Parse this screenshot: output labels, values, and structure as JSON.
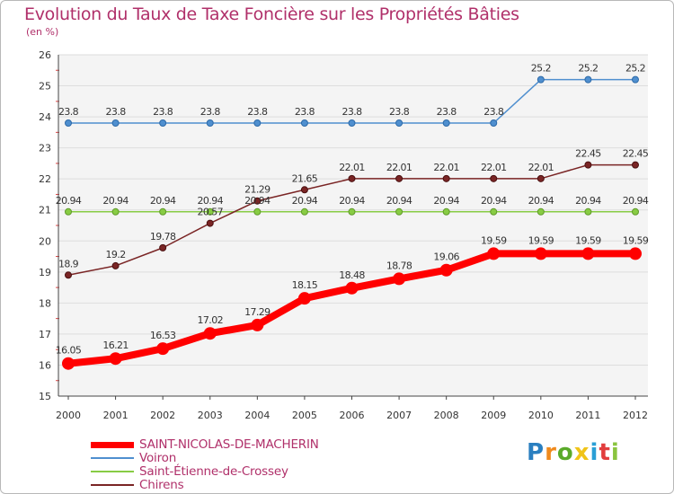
{
  "chart_data": {
    "type": "line",
    "title": "Evolution du Taux de Taxe Foncière sur les Propriétés Bâties",
    "subtitle": "(en %)",
    "x": [
      "2000",
      "2001",
      "2002",
      "2003",
      "2004",
      "2005",
      "2006",
      "2007",
      "2008",
      "2009",
      "2010",
      "2011",
      "2012"
    ],
    "ylim": [
      15,
      26
    ],
    "yticks": [
      "15",
      "16",
      "17",
      "18",
      "19",
      "20",
      "21",
      "22",
      "23",
      "24",
      "25",
      "26"
    ],
    "grid": "horizontal",
    "legend_position": "bottom-left",
    "series": [
      {
        "name": "SAINT-NICOLAS-DE-MACHERIN",
        "color": "#ff0000",
        "values": [
          16.05,
          16.21,
          16.53,
          17.02,
          17.29,
          18.15,
          18.48,
          18.78,
          19.06,
          19.59,
          19.59,
          19.59,
          19.59
        ],
        "labels": [
          "16.05",
          "16.21",
          "16.53",
          "17.02",
          "17.29",
          "18.15",
          "18.48",
          "18.78",
          "19.06",
          "19.59",
          "19.59",
          "19.59",
          "19.59"
        ]
      },
      {
        "name": "Voiron",
        "color": "#4f8fcf",
        "values": [
          23.8,
          23.8,
          23.8,
          23.8,
          23.8,
          23.8,
          23.8,
          23.8,
          23.8,
          23.8,
          25.2,
          25.2,
          25.2
        ],
        "labels": [
          "23.8",
          "23.8",
          "23.8",
          "23.8",
          "23.8",
          "23.8",
          "23.8",
          "23.8",
          "23.8",
          "23.8",
          "25.2",
          "25.2",
          "25.2"
        ]
      },
      {
        "name": "Saint-Étienne-de-Crossey",
        "color": "#88cc44",
        "values": [
          20.94,
          20.94,
          20.94,
          20.94,
          20.94,
          20.94,
          20.94,
          20.94,
          20.94,
          20.94,
          20.94,
          20.94,
          20.94
        ],
        "labels": [
          "20.94",
          "20.94",
          "20.94",
          "20.94",
          "20.94",
          "20.94",
          "20.94",
          "20.94",
          "20.94",
          "20.94",
          "20.94",
          "20.94",
          "20.94"
        ]
      },
      {
        "name": "Chirens",
        "color": "#7a2525",
        "values": [
          18.9,
          19.2,
          19.78,
          20.57,
          21.29,
          21.65,
          22.01,
          22.01,
          22.01,
          22.01,
          22.01,
          22.45,
          22.45
        ],
        "labels": [
          "18.9",
          "19.2",
          "19.78",
          "20.57",
          "21.29",
          "21.65",
          "22.01",
          "22.01",
          "22.01",
          "22.01",
          "22.01",
          "22.45",
          "22.45"
        ]
      }
    ]
  },
  "brand": {
    "logo_letters": [
      "P",
      "r",
      "o",
      "x",
      "i",
      "t",
      "i"
    ],
    "logo_colors": [
      "#2a7fc0",
      "#f08a1c",
      "#5aaa2a",
      "#f0c419",
      "#2a9fd6",
      "#e23d3d",
      "#8ac43f"
    ]
  }
}
